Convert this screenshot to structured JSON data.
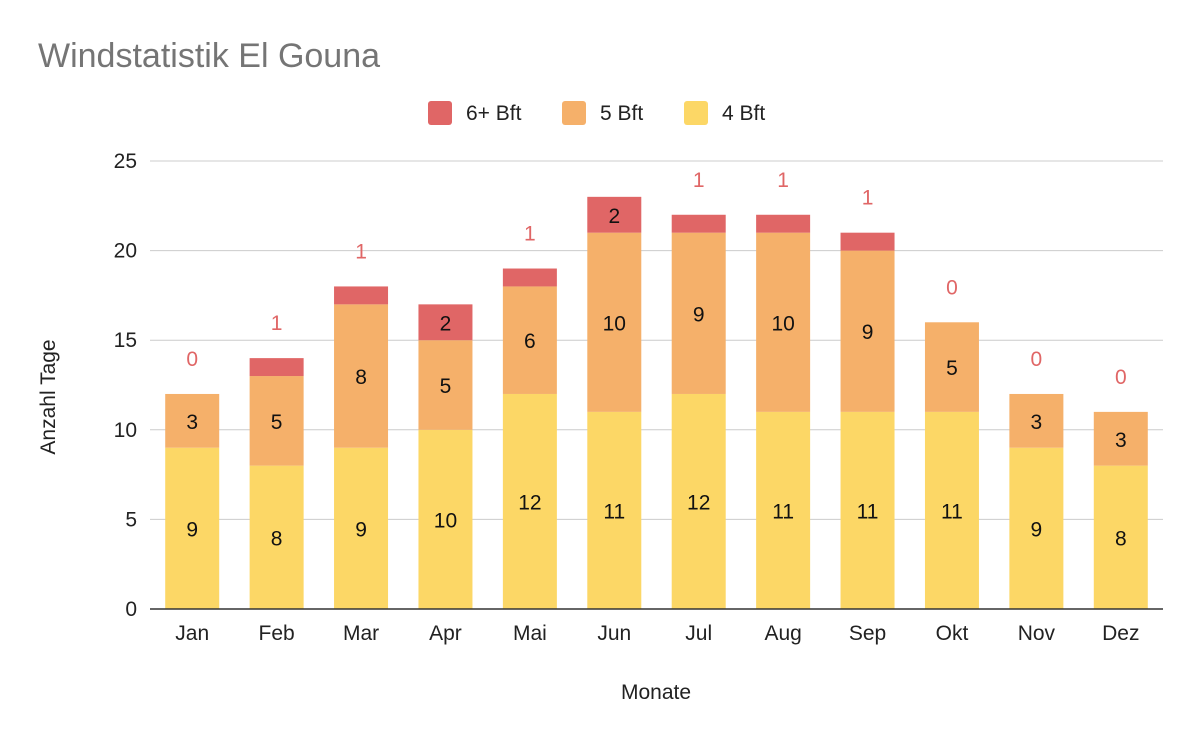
{
  "chart_data": {
    "type": "bar",
    "stacked": true,
    "title": "Windstatistik El Gouna",
    "xlabel": "Monate",
    "ylabel": "Anzahl Tage",
    "ylim": [
      0,
      25
    ],
    "yticks": [
      0,
      5,
      10,
      15,
      20,
      25
    ],
    "grid": true,
    "legend_position": "top",
    "categories": [
      "Jan",
      "Feb",
      "Mar",
      "Apr",
      "Mai",
      "Jun",
      "Jul",
      "Aug",
      "Sep",
      "Okt",
      "Nov",
      "Dez"
    ],
    "series": [
      {
        "name": "4 Bft",
        "color": "#fcd766",
        "values": [
          9,
          8,
          9,
          10,
          12,
          11,
          12,
          11,
          11,
          11,
          9,
          8
        ]
      },
      {
        "name": "5 Bft",
        "color": "#f5b06a",
        "values": [
          3,
          5,
          8,
          5,
          6,
          10,
          9,
          10,
          9,
          5,
          3,
          3
        ]
      },
      {
        "name": "6+ Bft",
        "color": "#e06666",
        "values": [
          0,
          1,
          1,
          2,
          1,
          2,
          1,
          1,
          1,
          0,
          0,
          0
        ]
      }
    ],
    "legend_order": [
      "6+ Bft",
      "5 Bft",
      "4 Bft"
    ]
  }
}
